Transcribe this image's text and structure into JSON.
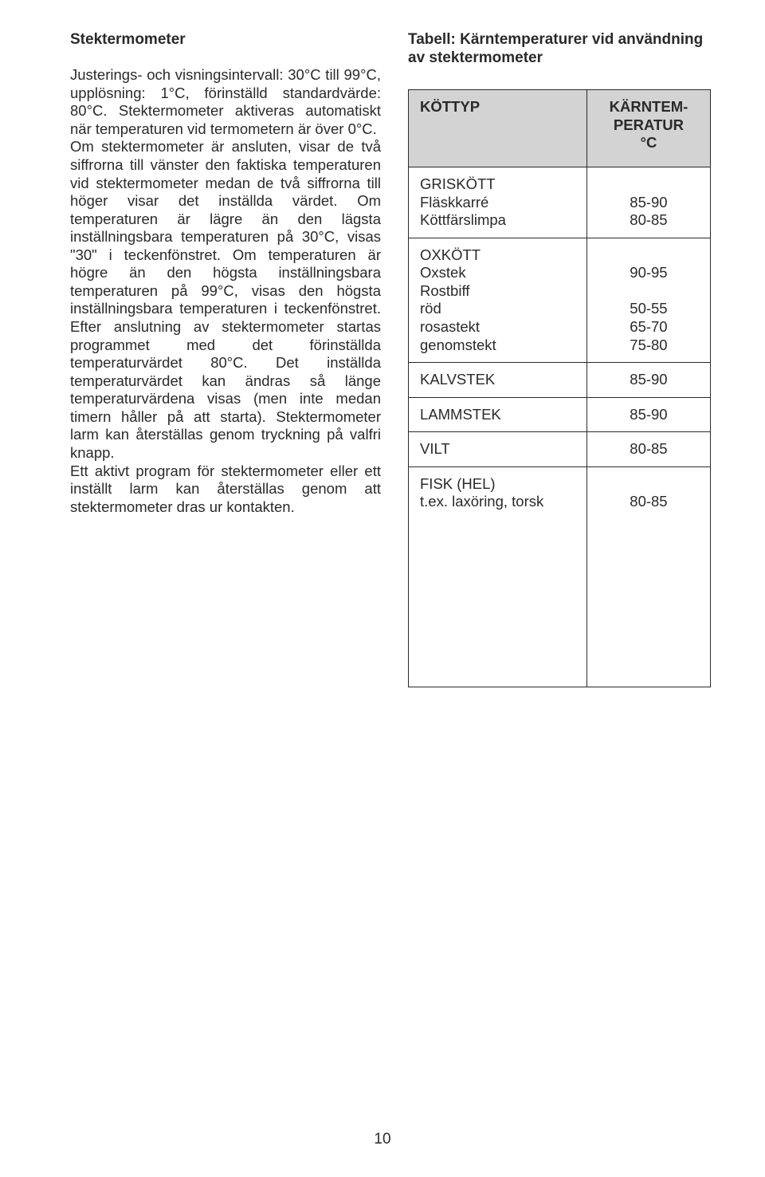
{
  "left": {
    "title": "Stektermometer",
    "body": "Justerings- och visningsintervall: 30°C till 99°C, upplösning: 1°C, förinställd standardvärde: 80°C. Stektermometer aktiveras automatiskt när temperaturen vid termometern är över 0°C.\nOm stektermometer är ansluten, visar de två siffrorna till vänster den faktiska temperaturen vid stektermometer medan de två siffrorna till höger visar det inställda värdet. Om temperaturen är lägre än den lägsta inställningsbara temperaturen på 30°C, visas \"30\" i teckenfönstret. Om temperaturen är högre än den högsta inställningsbara temperaturen på 99°C, visas den högsta inställningsbara temperaturen i teckenfönstret. Efter anslutning av stektermometer startas programmet med det förinställda temperaturvärdet 80°C. Det inställda temperaturvärdet kan ändras så länge temperaturvärdena visas (men inte medan timern håller på att starta). Stektermometer larm kan återställas genom tryckning på valfri knapp.\nEtt aktivt program för stektermometer eller ett inställt larm kan återställas genom att stektermometer dras ur kontakten."
  },
  "right": {
    "caption": "Tabell: Kärntemperaturer vid användning av stektermometer",
    "headers": {
      "col1": "KÖTTYP",
      "col2": "KÄRNTEM-\nPERATUR\n°C"
    },
    "groups": [
      {
        "head": "GRISKÖTT",
        "rows": [
          {
            "label": "Fläskkarré",
            "value": "85-90"
          },
          {
            "label": "Köttfärslimpa",
            "value": "80-85"
          }
        ]
      },
      {
        "head": "OXKÖTT",
        "rows": [
          {
            "label": "Oxstek",
            "value": "90-95"
          },
          {
            "label": "Rostbiff",
            "value": ""
          },
          {
            "label": "röd",
            "value": "50-55"
          },
          {
            "label": "rosastekt",
            "value": "65-70"
          },
          {
            "label": "genomstekt",
            "value": "75-80"
          }
        ]
      },
      {
        "head": "",
        "rows": [
          {
            "label": "KALVSTEK",
            "value": "85-90"
          }
        ]
      },
      {
        "head": "",
        "rows": [
          {
            "label": "LAMMSTEK",
            "value": "85-90"
          }
        ]
      },
      {
        "head": "",
        "rows": [
          {
            "label": "VILT",
            "value": "80-85"
          }
        ]
      },
      {
        "head": "FISK (HEL)",
        "rows": [
          {
            "label": "t.ex. laxöring, torsk",
            "value": "80-85"
          }
        ]
      }
    ]
  },
  "pageNumber": "10"
}
